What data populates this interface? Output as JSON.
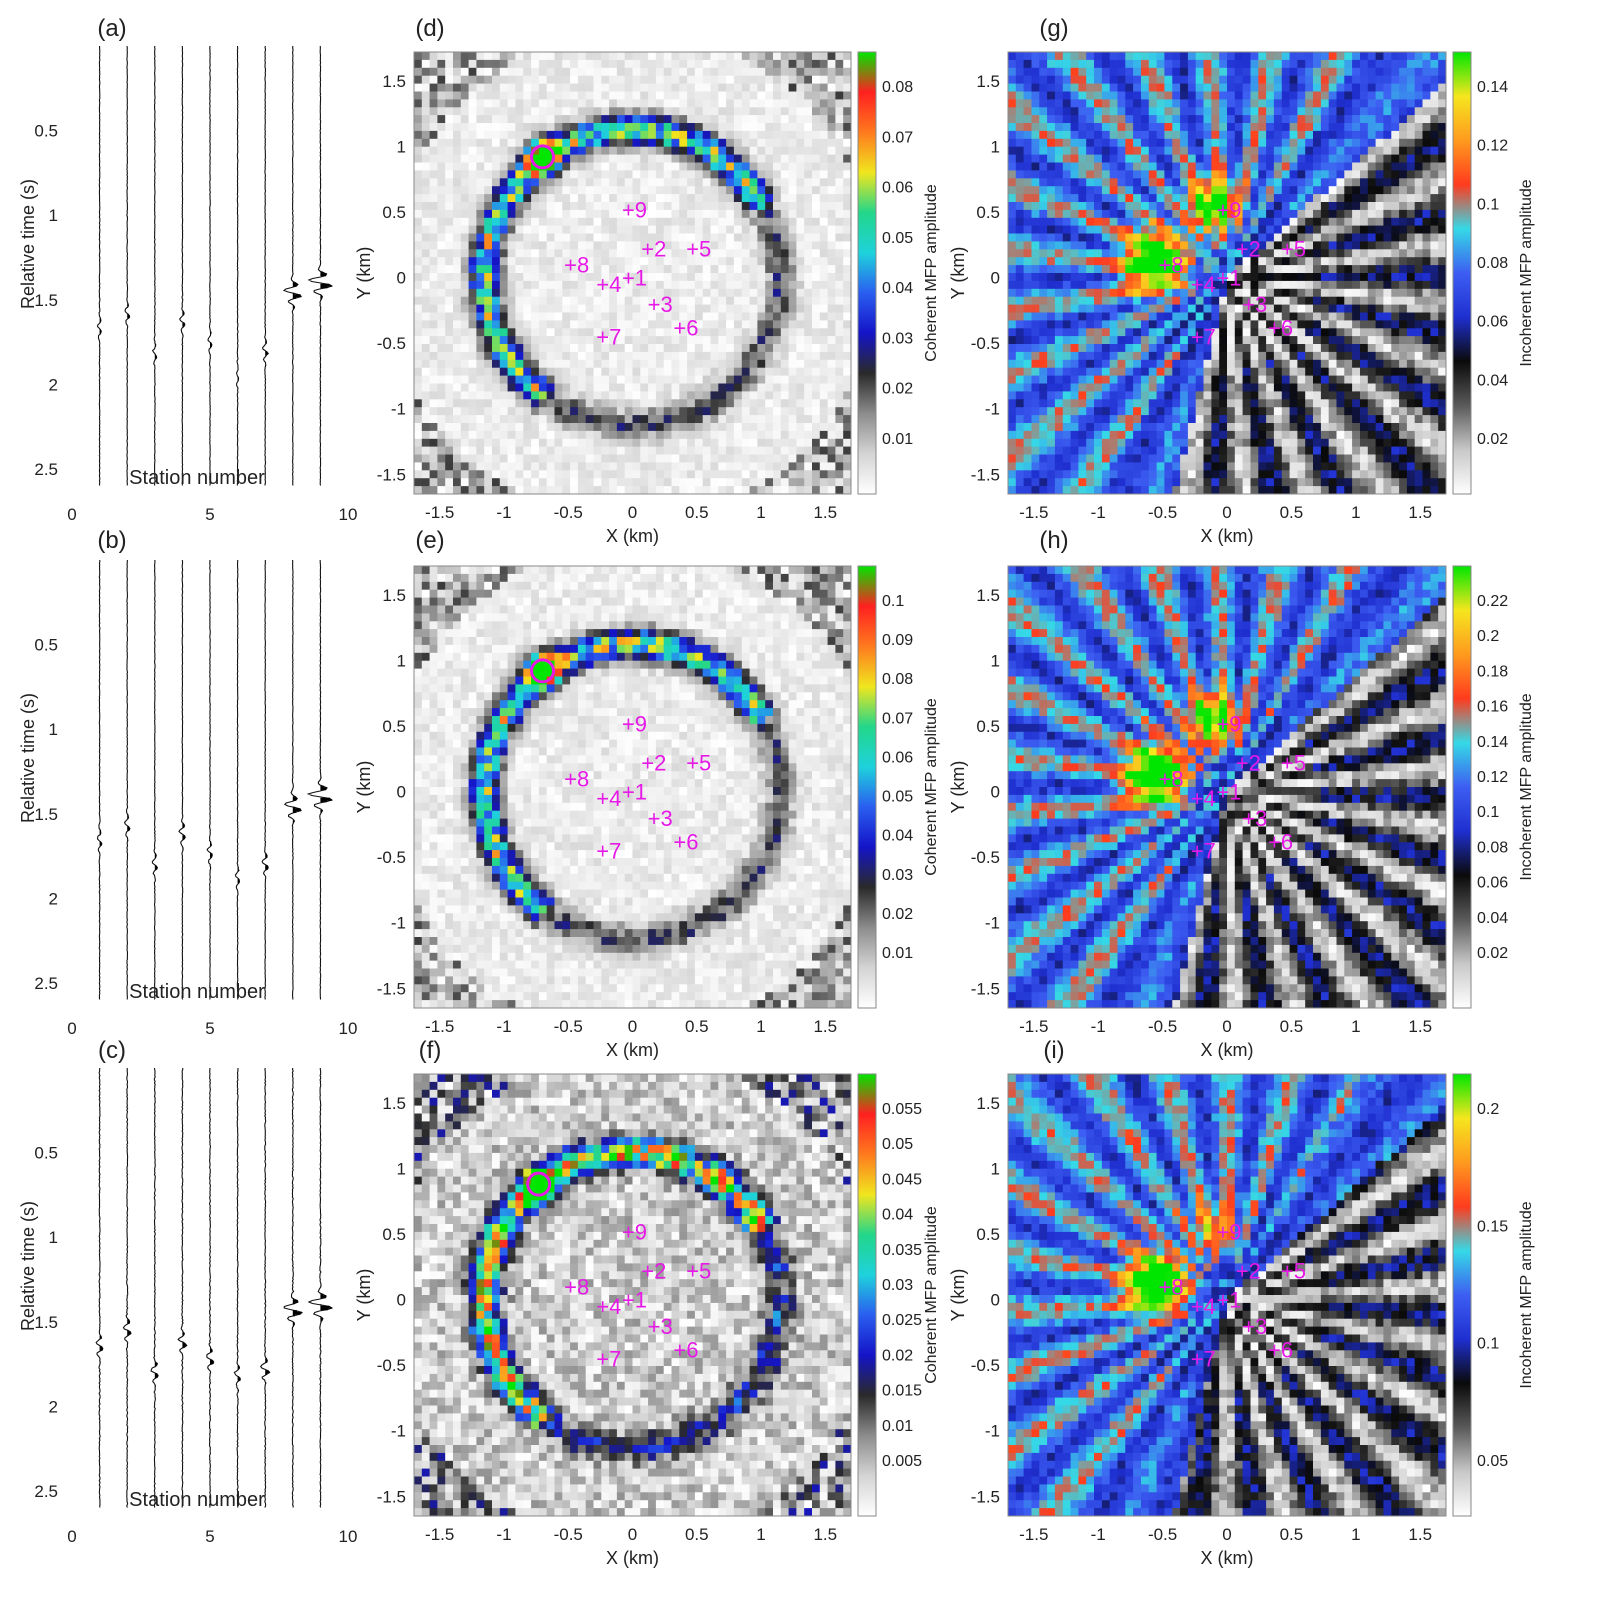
{
  "station_labels": [
    "1",
    "2",
    "3",
    "4",
    "5",
    "6",
    "7",
    "8",
    "9"
  ],
  "colors": {
    "marker": "#e619e6",
    "coherent_colormap": [
      "#ffffff",
      "#d4d4d4",
      "#8c8c8c",
      "#2a2a2a",
      "#1414c8",
      "#2a5ef0",
      "#1ed2dc",
      "#22d68a",
      "#f0e61e",
      "#ff7a1e",
      "#ff2020",
      "#00e600"
    ],
    "incoherent_colormap": [
      "#ffffff",
      "#c8c8c8",
      "#5a5a5a",
      "#0a0a0a",
      "#1f2fd0",
      "#3d5ef2",
      "#35d9e6",
      "#ff3b1e",
      "#ff9a1e",
      "#f5e61e",
      "#00e600"
    ]
  },
  "chart_data": [
    {
      "panel": "(a)",
      "type": "line",
      "xlabel": "Station number",
      "ylabel": "Relative time (s)",
      "xlim": [
        0,
        10
      ],
      "ylim": [
        2.6,
        0
      ],
      "xticks": [
        "0",
        "5",
        "10"
      ],
      "yticks": [
        "0.5",
        "1",
        "1.5",
        "2",
        "2.5"
      ],
      "series": [
        {
          "x": 1,
          "arrival_s": 1.67,
          "amplitude": 0.15
        },
        {
          "x": 2,
          "arrival_s": 1.58,
          "amplitude": 0.2
        },
        {
          "x": 3,
          "arrival_s": 1.82,
          "amplitude": 0.15
        },
        {
          "x": 4,
          "arrival_s": 1.63,
          "amplitude": 0.2
        },
        {
          "x": 5,
          "arrival_s": 1.75,
          "amplitude": 0.15
        },
        {
          "x": 6,
          "arrival_s": 1.95,
          "amplitude": 0.1
        },
        {
          "x": 7,
          "arrival_s": 1.8,
          "amplitude": 0.2
        },
        {
          "x": 8,
          "arrival_s": 1.46,
          "amplitude": 0.65
        },
        {
          "x": 9,
          "arrival_s": 1.4,
          "amplitude": 0.9
        }
      ]
    },
    {
      "panel": "(b)",
      "type": "line",
      "xlabel": "Station number",
      "ylabel": "Relative time (s)",
      "xlim": [
        0,
        10
      ],
      "ylim": [
        2.6,
        0
      ],
      "xticks": [
        "0",
        "5",
        "10"
      ],
      "yticks": [
        "0.5",
        "1",
        "1.5",
        "2",
        "2.5"
      ],
      "series": [
        {
          "x": 1,
          "arrival_s": 1.66,
          "amplitude": 0.2
        },
        {
          "x": 2,
          "arrival_s": 1.57,
          "amplitude": 0.2
        },
        {
          "x": 3,
          "arrival_s": 1.8,
          "amplitude": 0.2
        },
        {
          "x": 4,
          "arrival_s": 1.62,
          "amplitude": 0.25
        },
        {
          "x": 5,
          "arrival_s": 1.73,
          "amplitude": 0.2
        },
        {
          "x": 6,
          "arrival_s": 1.88,
          "amplitude": 0.15
        },
        {
          "x": 7,
          "arrival_s": 1.8,
          "amplitude": 0.25
        },
        {
          "x": 8,
          "arrival_s": 1.46,
          "amplitude": 0.65
        },
        {
          "x": 9,
          "arrival_s": 1.4,
          "amplitude": 0.9
        }
      ]
    },
    {
      "panel": "(c)",
      "type": "line",
      "xlabel": "Station number",
      "ylabel": "Relative time (s)",
      "xlim": [
        0,
        10
      ],
      "ylim": [
        2.6,
        0
      ],
      "xticks": [
        "0",
        "5",
        "10"
      ],
      "yticks": [
        "0.5",
        "1",
        "1.5",
        "2",
        "2.5"
      ],
      "series": [
        {
          "x": 1,
          "arrival_s": 1.64,
          "amplitude": 0.3
        },
        {
          "x": 2,
          "arrival_s": 1.55,
          "amplitude": 0.3
        },
        {
          "x": 3,
          "arrival_s": 1.8,
          "amplitude": 0.3
        },
        {
          "x": 4,
          "arrival_s": 1.62,
          "amplitude": 0.3
        },
        {
          "x": 5,
          "arrival_s": 1.72,
          "amplitude": 0.3
        },
        {
          "x": 6,
          "arrival_s": 1.82,
          "amplitude": 0.25
        },
        {
          "x": 7,
          "arrival_s": 1.78,
          "amplitude": 0.35
        },
        {
          "x": 8,
          "arrival_s": 1.43,
          "amplitude": 0.7
        },
        {
          "x": 9,
          "arrival_s": 1.4,
          "amplitude": 0.9
        }
      ]
    },
    {
      "panel": "(d)",
      "type": "heatmap",
      "xlabel": "X (km)",
      "ylabel": "Y (km)",
      "xlim": [
        -1.7,
        1.7
      ],
      "ylim": [
        -1.65,
        1.72
      ],
      "xticks": [
        "-1.5",
        "-1",
        "-0.5",
        "0",
        "0.5",
        "1",
        "1.5"
      ],
      "yticks": [
        "1.5",
        "1",
        "0.5",
        "0",
        "-0.5",
        "-1",
        "-1.5"
      ],
      "colorbar_label": "Coherent MFP amplitude",
      "colorbar_ticks": [
        "0.08",
        "0.07",
        "0.06",
        "0.05",
        "0.04",
        "0.03",
        "0.02",
        "0.01"
      ],
      "source": {
        "x": -0.7,
        "y": 0.92
      },
      "stations": [
        {
          "label": "1",
          "x": 0.0,
          "y": 0.0
        },
        {
          "label": "2",
          "x": 0.15,
          "y": 0.22
        },
        {
          "label": "3",
          "x": 0.2,
          "y": -0.2
        },
        {
          "label": "4",
          "x": -0.2,
          "y": -0.05
        },
        {
          "label": "5",
          "x": 0.5,
          "y": 0.22
        },
        {
          "label": "6",
          "x": 0.4,
          "y": -0.38
        },
        {
          "label": "7",
          "x": -0.2,
          "y": -0.45
        },
        {
          "label": "8",
          "x": -0.45,
          "y": 0.1
        },
        {
          "label": "9",
          "x": 0.0,
          "y": 0.52
        }
      ]
    },
    {
      "panel": "(e)",
      "type": "heatmap",
      "xlabel": "X (km)",
      "ylabel": "Y (km)",
      "xlim": [
        -1.7,
        1.7
      ],
      "ylim": [
        -1.65,
        1.72
      ],
      "xticks": [
        "-1.5",
        "-1",
        "-0.5",
        "0",
        "0.5",
        "1",
        "1.5"
      ],
      "yticks": [
        "1.5",
        "1",
        "0.5",
        "0",
        "-0.5",
        "-1",
        "-1.5"
      ],
      "colorbar_label": "Coherent MFP amplitude",
      "colorbar_ticks": [
        "0.1",
        "0.09",
        "0.08",
        "0.07",
        "0.06",
        "0.05",
        "0.04",
        "0.03",
        "0.02",
        "0.01"
      ],
      "source": {
        "x": -0.7,
        "y": 0.92
      }
    },
    {
      "panel": "(f)",
      "type": "heatmap",
      "xlabel": "X (km)",
      "ylabel": "Y (km)",
      "xlim": [
        -1.7,
        1.7
      ],
      "ylim": [
        -1.65,
        1.72
      ],
      "xticks": [
        "-1.5",
        "-1",
        "-0.5",
        "0",
        "0.5",
        "1",
        "1.5"
      ],
      "yticks": [
        "1.5",
        "1",
        "0.5",
        "0",
        "-0.5",
        "-1",
        "-1.5"
      ],
      "colorbar_label": "Coherent MFP amplitude",
      "colorbar_ticks": [
        "0.055",
        "0.05",
        "0.045",
        "0.04",
        "0.035",
        "0.03",
        "0.025",
        "0.02",
        "0.015",
        "0.01",
        "0.005"
      ],
      "source": {
        "x": -0.73,
        "y": 0.88
      }
    },
    {
      "panel": "(g)",
      "type": "heatmap",
      "xlabel": "X (km)",
      "ylabel": "Y (km)",
      "xlim": [
        -1.7,
        1.7
      ],
      "ylim": [
        -1.65,
        1.72
      ],
      "xticks": [
        "-1.5",
        "-1",
        "-0.5",
        "0",
        "0.5",
        "1",
        "1.5"
      ],
      "yticks": [
        "1.5",
        "1",
        "0.5",
        "0",
        "-0.5",
        "-1",
        "-1.5"
      ],
      "colorbar_label": "Incoherent MFP amplitude",
      "colorbar_ticks": [
        "0.14",
        "0.12",
        "0.1",
        "0.08",
        "0.06",
        "0.04",
        "0.02"
      ]
    },
    {
      "panel": "(h)",
      "type": "heatmap",
      "xlabel": "X (km)",
      "ylabel": "Y (km)",
      "xlim": [
        -1.7,
        1.7
      ],
      "ylim": [
        -1.65,
        1.72
      ],
      "xticks": [
        "-1.5",
        "-1",
        "-0.5",
        "0",
        "0.5",
        "1",
        "1.5"
      ],
      "yticks": [
        "1.5",
        "1",
        "0.5",
        "0",
        "-0.5",
        "-1",
        "-1.5"
      ],
      "colorbar_label": "Incoherent MFP amplitude",
      "colorbar_ticks": [
        "0.22",
        "0.2",
        "0.18",
        "0.16",
        "0.14",
        "0.12",
        "0.1",
        "0.08",
        "0.06",
        "0.04",
        "0.02"
      ]
    },
    {
      "panel": "(i)",
      "type": "heatmap",
      "xlabel": "X (km)",
      "ylabel": "Y (km)",
      "xlim": [
        -1.7,
        1.7
      ],
      "ylim": [
        -1.65,
        1.72
      ],
      "xticks": [
        "-1.5",
        "-1",
        "-0.5",
        "0",
        "0.5",
        "1",
        "1.5"
      ],
      "yticks": [
        "1.5",
        "1",
        "0.5",
        "0",
        "-0.5",
        "-1",
        "-1.5"
      ],
      "colorbar_label": "Incoherent MFP amplitude",
      "colorbar_ticks": [
        "0.2",
        "0.15",
        "0.1",
        "0.05"
      ]
    }
  ]
}
